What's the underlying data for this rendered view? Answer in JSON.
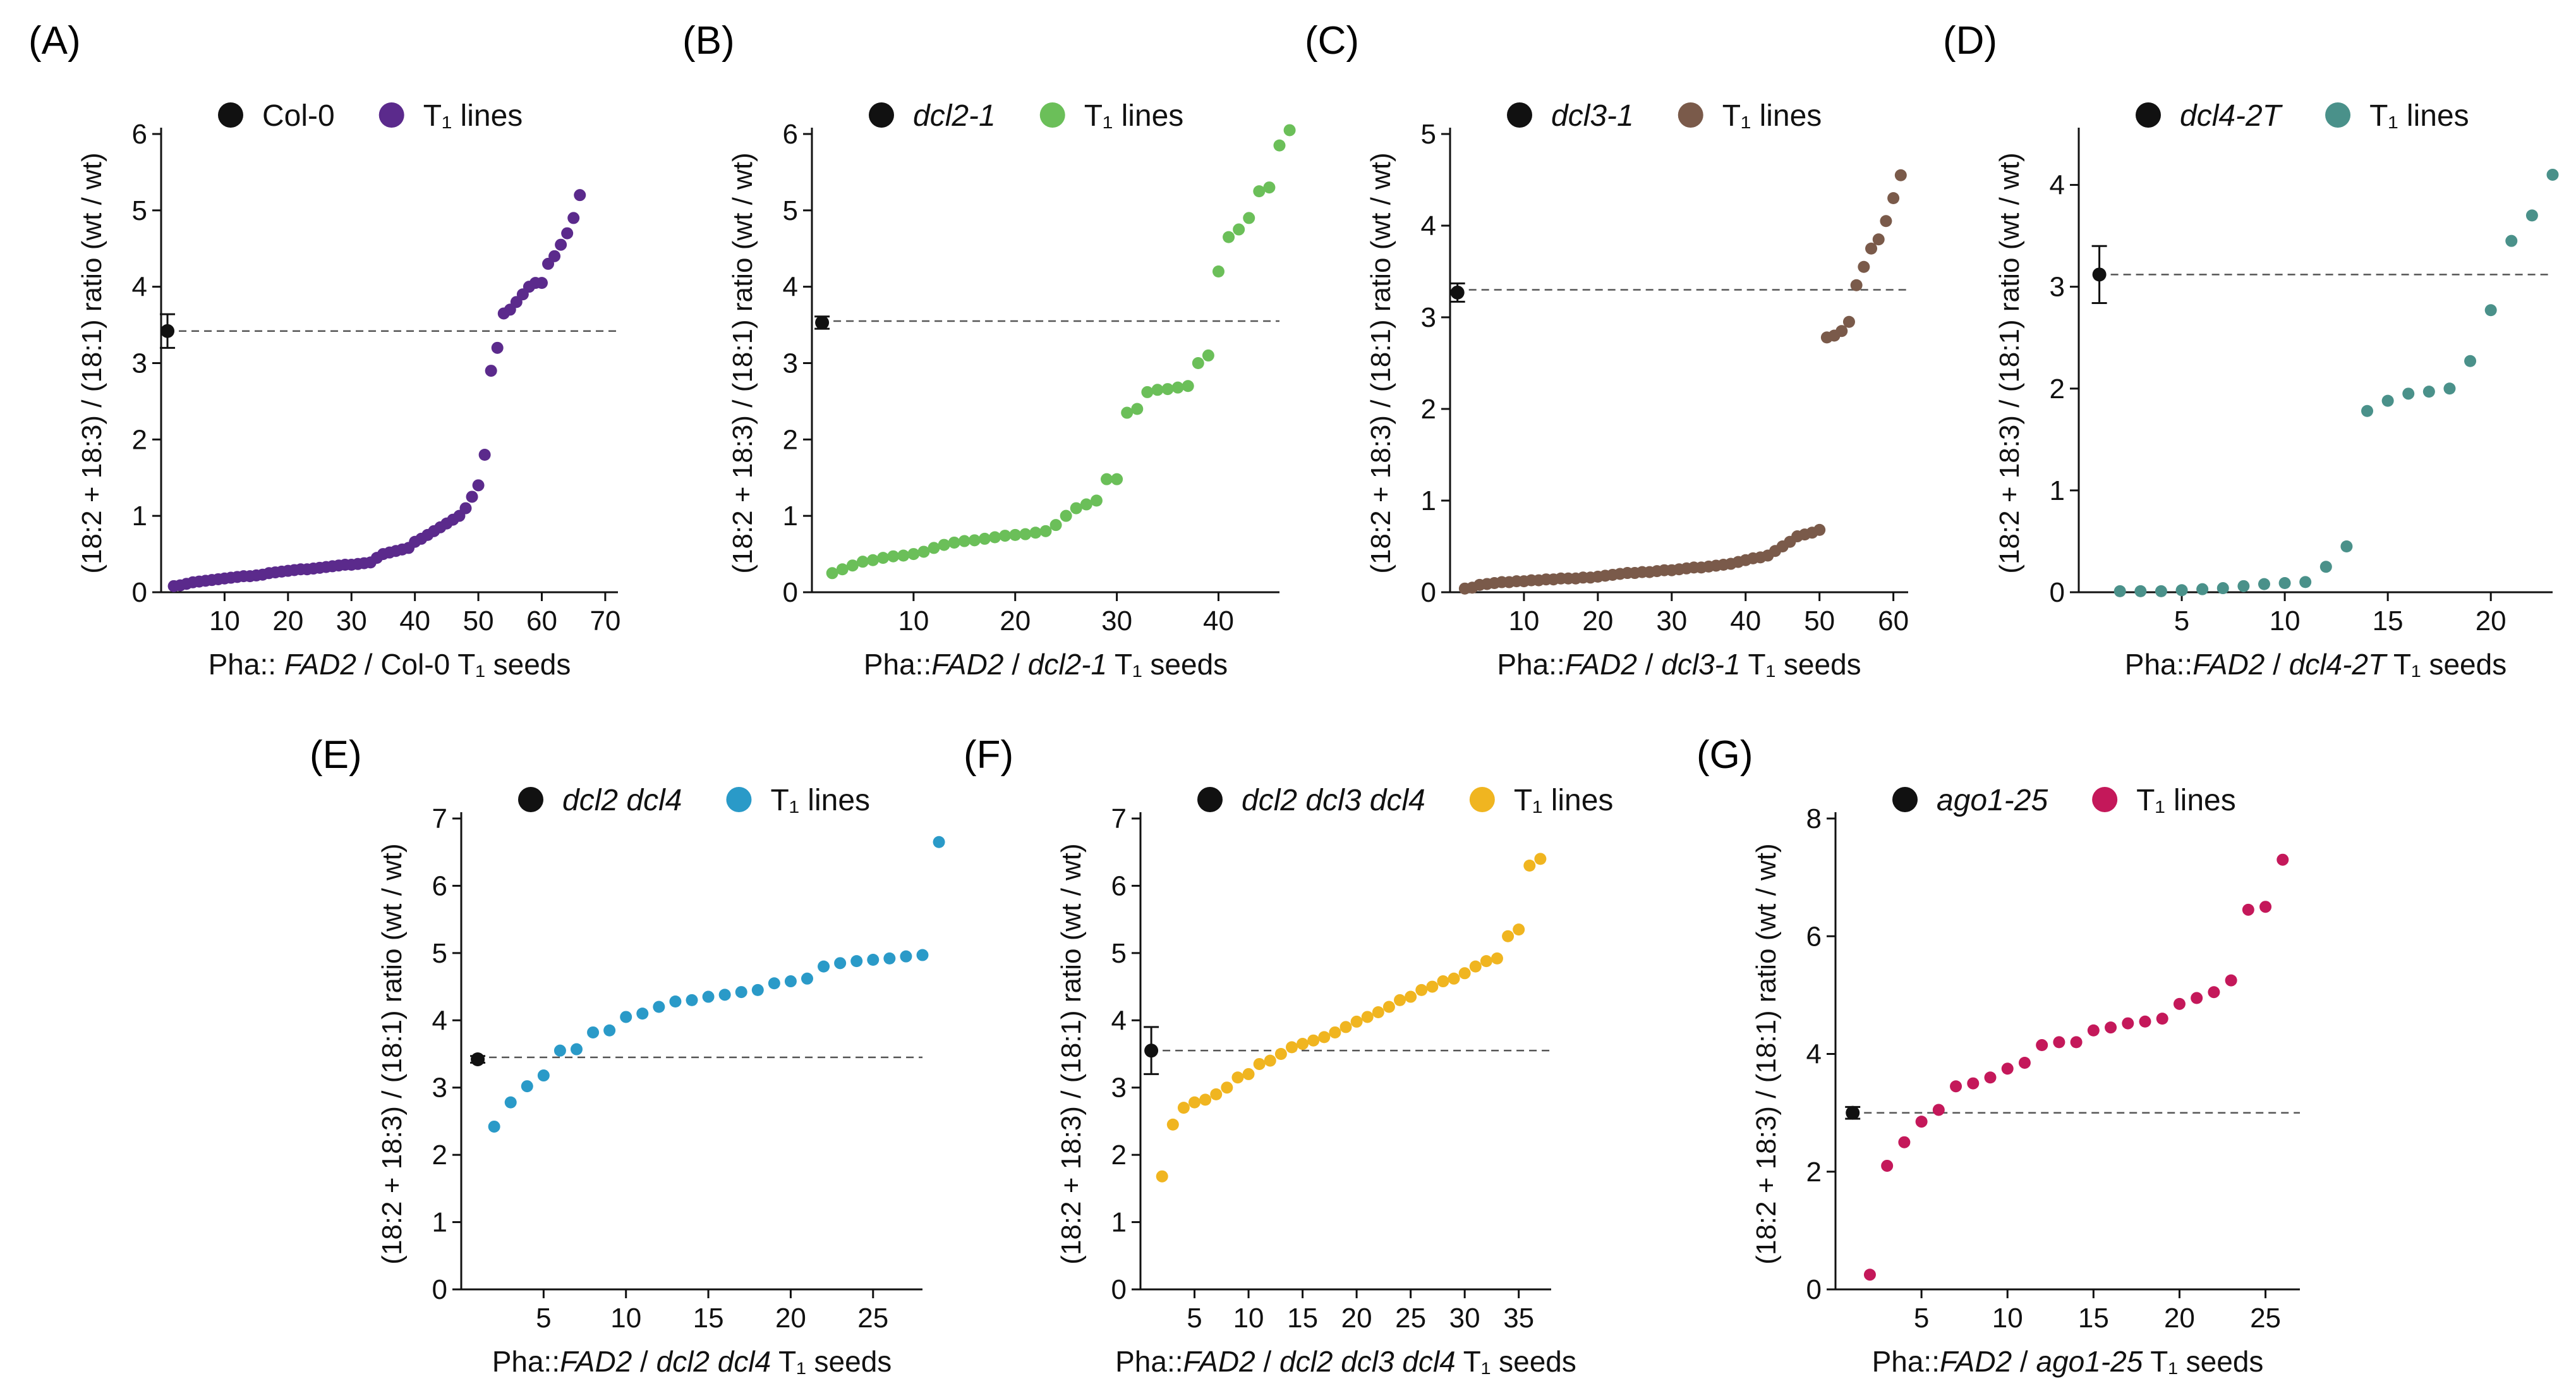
{
  "chart_data": [
    {
      "panel_label": "(A)",
      "type": "scatter",
      "color": "#5b2a8c",
      "legend": {
        "control": "Col-0",
        "control_italic": false,
        "lines": "T₁ lines"
      },
      "xlabel": {
        "prefix": "Pha:: ",
        "gene": "FAD2",
        "middle": " / ",
        "genotype": "Col-0",
        "genotype_italic": false,
        "suffix": " T₁ seeds"
      },
      "ylabel": "(18:2 + 18:3) / (18:1) ratio (wt / wt)",
      "xlim": [
        0,
        72
      ],
      "ylim": [
        0,
        6
      ],
      "xticks": [
        10,
        20,
        30,
        40,
        50,
        60,
        70
      ],
      "yticks": [
        0,
        1,
        2,
        3,
        4,
        5,
        6
      ],
      "control": {
        "x": 1,
        "y": 3.42,
        "err": 0.22
      },
      "reference_line": 3.42,
      "values": [
        0.08,
        0.09,
        0.11,
        0.13,
        0.14,
        0.15,
        0.16,
        0.17,
        0.18,
        0.19,
        0.2,
        0.21,
        0.21,
        0.22,
        0.23,
        0.25,
        0.26,
        0.27,
        0.28,
        0.29,
        0.3,
        0.3,
        0.31,
        0.32,
        0.33,
        0.34,
        0.35,
        0.36,
        0.36,
        0.37,
        0.38,
        0.39,
        0.45,
        0.5,
        0.52,
        0.54,
        0.56,
        0.58,
        0.66,
        0.7,
        0.75,
        0.8,
        0.85,
        0.9,
        0.95,
        1.0,
        1.1,
        1.25,
        1.4,
        1.8,
        2.9,
        3.2,
        3.65,
        3.7,
        3.8,
        3.9,
        4.0,
        4.05,
        4.05,
        4.3,
        4.4,
        4.55,
        4.7,
        4.9,
        5.2
      ]
    },
    {
      "panel_label": "(B)",
      "type": "scatter",
      "color": "#6bbf59",
      "legend": {
        "control": "dcl2-1",
        "control_italic": true,
        "lines": "T₁ lines"
      },
      "xlabel": {
        "prefix": "Pha::",
        "gene": "FAD2",
        "middle": " / ",
        "genotype": "dcl2-1",
        "genotype_italic": true,
        "suffix": " T₁ seeds"
      },
      "ylabel": "(18:2 + 18:3) / (18:1) ratio (wt / wt)",
      "xlim": [
        0,
        46
      ],
      "ylim": [
        0,
        6
      ],
      "xticks": [
        10,
        20,
        30,
        40
      ],
      "yticks": [
        0,
        1,
        2,
        3,
        4,
        5,
        6
      ],
      "control": {
        "x": 1,
        "y": 3.53,
        "err": 0.08
      },
      "reference_line": 3.55,
      "values": [
        0.25,
        0.3,
        0.35,
        0.4,
        0.42,
        0.45,
        0.47,
        0.48,
        0.5,
        0.53,
        0.58,
        0.62,
        0.65,
        0.67,
        0.68,
        0.7,
        0.72,
        0.74,
        0.75,
        0.76,
        0.78,
        0.8,
        0.88,
        1.0,
        1.1,
        1.15,
        1.2,
        1.48,
        1.48,
        2.35,
        2.4,
        2.62,
        2.65,
        2.66,
        2.68,
        2.7,
        3.0,
        3.1,
        4.2,
        4.65,
        4.75,
        4.9,
        5.25,
        5.3,
        5.85,
        6.05
      ]
    },
    {
      "panel_label": "(C)",
      "type": "scatter",
      "color": "#7a5a4a",
      "legend": {
        "control": "dcl3-1",
        "control_italic": true,
        "lines": "T₁ lines"
      },
      "xlabel": {
        "prefix": "Pha::",
        "gene": "FAD2",
        "middle": " / ",
        "genotype": "dcl3-1",
        "genotype_italic": true,
        "suffix": " T₁ seeds"
      },
      "ylabel": "(18:2 + 18:3) / (18:1) ratio (wt / wt)",
      "xlim": [
        0,
        62
      ],
      "ylim": [
        0,
        5
      ],
      "xticks": [
        10,
        20,
        30,
        40,
        50,
        60
      ],
      "yticks": [
        0,
        1,
        2,
        3,
        4,
        5
      ],
      "control": {
        "x": 1,
        "y": 3.27,
        "err": 0.1
      },
      "reference_line": 3.3,
      "values": [
        0.04,
        0.05,
        0.08,
        0.09,
        0.1,
        0.11,
        0.11,
        0.12,
        0.12,
        0.13,
        0.13,
        0.14,
        0.14,
        0.15,
        0.15,
        0.15,
        0.16,
        0.16,
        0.17,
        0.18,
        0.19,
        0.2,
        0.21,
        0.21,
        0.22,
        0.22,
        0.23,
        0.24,
        0.24,
        0.25,
        0.26,
        0.27,
        0.27,
        0.28,
        0.29,
        0.3,
        0.31,
        0.33,
        0.35,
        0.37,
        0.38,
        0.4,
        0.45,
        0.5,
        0.55,
        0.61,
        0.63,
        0.65,
        0.68,
        2.78,
        2.8,
        2.85,
        2.95,
        3.35,
        3.55,
        3.75,
        3.85,
        4.05,
        4.3,
        4.55
      ]
    },
    {
      "panel_label": "(D)",
      "type": "scatter",
      "color": "#4a918a",
      "legend": {
        "control": "dcl4-2T",
        "control_italic": true,
        "lines": "T₁ lines"
      },
      "xlabel": {
        "prefix": "Pha::",
        "gene": "FAD2",
        "middle": " / ",
        "genotype": "dcl4-2T",
        "genotype_italic": true,
        "suffix": " T₁ seeds"
      },
      "ylabel": "(18:2 + 18:3) / (18:1) ratio (wt / wt)",
      "xlim": [
        0,
        23
      ],
      "ylim": [
        0,
        4.5
      ],
      "xticks": [
        5,
        10,
        15,
        20
      ],
      "yticks": [
        0,
        1,
        2,
        3,
        4
      ],
      "control": {
        "x": 1,
        "y": 3.12,
        "err": 0.28
      },
      "reference_line": 3.12,
      "values": [
        0.01,
        0.01,
        0.01,
        0.02,
        0.03,
        0.04,
        0.06,
        0.08,
        0.09,
        0.1,
        0.25,
        0.45,
        1.78,
        1.88,
        1.95,
        1.97,
        2.0,
        2.27,
        2.77,
        3.45,
        3.7,
        4.1
      ]
    },
    {
      "panel_label": "(E)",
      "type": "scatter",
      "color": "#2a9ac8",
      "legend": {
        "control": "dcl2 dcl4",
        "control_italic": true,
        "lines": "T₁ lines"
      },
      "xlabel": {
        "prefix": "Pha::",
        "gene": "FAD2",
        "middle": " / ",
        "genotype": "dcl2 dcl4",
        "genotype_italic": true,
        "suffix": " T₁ seeds"
      },
      "ylabel": "(18:2 + 18:3) / (18:1) ratio (wt / wt)",
      "xlim": [
        0,
        28
      ],
      "ylim": [
        0,
        7
      ],
      "xticks": [
        5,
        10,
        15,
        20,
        25
      ],
      "yticks": [
        0,
        1,
        2,
        3,
        4,
        5,
        6,
        7
      ],
      "control": {
        "x": 1,
        "y": 3.42,
        "err": 0.05
      },
      "reference_line": 3.45,
      "values": [
        2.42,
        2.78,
        3.02,
        3.18,
        3.55,
        3.57,
        3.82,
        3.85,
        4.05,
        4.1,
        4.2,
        4.28,
        4.3,
        4.35,
        4.38,
        4.42,
        4.45,
        4.55,
        4.58,
        4.62,
        4.8,
        4.85,
        4.88,
        4.9,
        4.92,
        4.95,
        4.97,
        6.65
      ]
    },
    {
      "panel_label": "(F)",
      "type": "scatter",
      "color": "#f0b520",
      "legend": {
        "control": "dcl2 dcl3 dcl4",
        "control_italic": true,
        "lines": "T₁ lines"
      },
      "xlabel": {
        "prefix": "Pha::",
        "gene": "FAD2",
        "middle": " / ",
        "genotype": "dcl2 dcl3 dcl4",
        "genotype_italic": true,
        "suffix": " T₁ seeds"
      },
      "ylabel": "(18:2 + 18:3) / (18:1) ratio (wt / wt)",
      "xlim": [
        0,
        38
      ],
      "ylim": [
        0,
        7
      ],
      "xticks": [
        5,
        10,
        15,
        20,
        25,
        30,
        35
      ],
      "yticks": [
        0,
        1,
        2,
        3,
        4,
        5,
        6,
        7
      ],
      "control": {
        "x": 1,
        "y": 3.55,
        "err": 0.35
      },
      "reference_line": 3.55,
      "values": [
        1.68,
        2.45,
        2.7,
        2.78,
        2.82,
        2.9,
        3.0,
        3.15,
        3.2,
        3.35,
        3.4,
        3.5,
        3.6,
        3.65,
        3.7,
        3.75,
        3.82,
        3.9,
        3.98,
        4.05,
        4.12,
        4.2,
        4.3,
        4.35,
        4.45,
        4.5,
        4.58,
        4.62,
        4.7,
        4.8,
        4.88,
        4.92,
        5.25,
        5.35,
        6.3,
        6.4
      ]
    },
    {
      "panel_label": "(G)",
      "type": "scatter",
      "color": "#c4185a",
      "legend": {
        "control": "ago1-25",
        "control_italic": true,
        "lines": "T₁ lines"
      },
      "xlabel": {
        "prefix": "Pha::",
        "gene": "FAD2",
        "middle": " / ",
        "genotype": "ago1-25",
        "genotype_italic": true,
        "suffix": " T₁ seeds"
      },
      "ylabel": "(18:2 + 18:3) / (18:1) ratio (wt / wt)",
      "xlim": [
        0,
        27
      ],
      "ylim": [
        0,
        8
      ],
      "xticks": [
        5,
        10,
        15,
        20,
        25
      ],
      "yticks": [
        0,
        2,
        4,
        6,
        8
      ],
      "control": {
        "x": 1,
        "y": 3.0,
        "err": 0.1
      },
      "reference_line": 3.0,
      "values": [
        0.25,
        2.1,
        2.5,
        2.85,
        3.05,
        3.45,
        3.5,
        3.6,
        3.75,
        3.85,
        4.15,
        4.2,
        4.2,
        4.4,
        4.45,
        4.52,
        4.55,
        4.6,
        4.85,
        4.95,
        5.05,
        5.25,
        6.45,
        6.5,
        7.3
      ]
    }
  ]
}
